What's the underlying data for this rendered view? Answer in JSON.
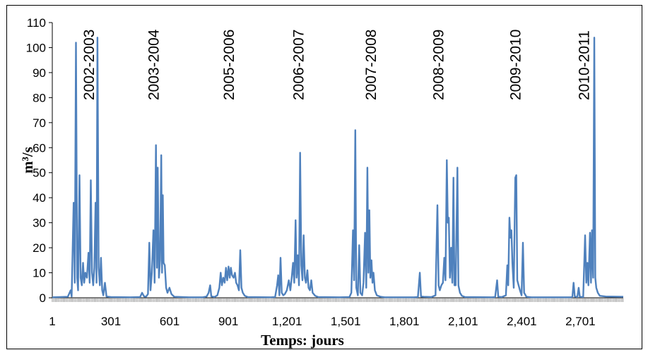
{
  "chart_data": {
    "type": "line",
    "title": "",
    "xlabel": "Temps: jours",
    "ylabel": "m³/s",
    "xlim": [
      1,
      2920
    ],
    "ylim": [
      0,
      110
    ],
    "y_ticks": [
      0,
      10,
      20,
      30,
      40,
      50,
      60,
      70,
      80,
      90,
      100,
      110
    ],
    "x_tick_values": [
      1,
      301,
      601,
      901,
      1201,
      1501,
      1801,
      2101,
      2401,
      2701
    ],
    "x_tick_labels": [
      "1",
      "301",
      "601",
      "901",
      "1,201",
      "1,501",
      "1,801",
      "2,101",
      "2,401",
      "2,701"
    ],
    "grid": false,
    "legend": "none",
    "line_color": "#4f81bd",
    "year_labels": [
      {
        "text": "2002-2003",
        "x": 215
      },
      {
        "text": "2003-2004",
        "x": 545
      },
      {
        "text": "2005-2006",
        "x": 930
      },
      {
        "text": "2006-2007",
        "x": 1285
      },
      {
        "text": "2007-2008",
        "x": 1655
      },
      {
        "text": "2008-2009",
        "x": 2000
      },
      {
        "text": "2009-2010",
        "x": 2395
      },
      {
        "text": "2010-2011",
        "x": 2745
      }
    ],
    "series": [
      {
        "values": [
          [
            1,
            0.2
          ],
          [
            80,
            0.4
          ],
          [
            95,
            3
          ],
          [
            100,
            0.5
          ],
          [
            110,
            38
          ],
          [
            116,
            6
          ],
          [
            122,
            102
          ],
          [
            128,
            8
          ],
          [
            133,
            3
          ],
          [
            140,
            49
          ],
          [
            146,
            8
          ],
          [
            152,
            5
          ],
          [
            158,
            14
          ],
          [
            164,
            6
          ],
          [
            170,
            10
          ],
          [
            178,
            8
          ],
          [
            186,
            18
          ],
          [
            192,
            6
          ],
          [
            198,
            47
          ],
          [
            204,
            10
          ],
          [
            210,
            5
          ],
          [
            216,
            12
          ],
          [
            222,
            38
          ],
          [
            227,
            6
          ],
          [
            232,
            104
          ],
          [
            238,
            12
          ],
          [
            244,
            5
          ],
          [
            250,
            16
          ],
          [
            256,
            3
          ],
          [
            262,
            1
          ],
          [
            270,
            6
          ],
          [
            278,
            0.5
          ],
          [
            300,
            0.3
          ],
          [
            400,
            0.2
          ],
          [
            450,
            0.3
          ],
          [
            460,
            2
          ],
          [
            470,
            0.6
          ],
          [
            480,
            0.4
          ],
          [
            490,
            1.5
          ],
          [
            497,
            22
          ],
          [
            503,
            3
          ],
          [
            510,
            10
          ],
          [
            518,
            27
          ],
          [
            524,
            6
          ],
          [
            531,
            61
          ],
          [
            536,
            12
          ],
          [
            540,
            52
          ],
          [
            546,
            8
          ],
          [
            552,
            15
          ],
          [
            558,
            57
          ],
          [
            562,
            10
          ],
          [
            566,
            41
          ],
          [
            570,
            14
          ],
          [
            576,
            13
          ],
          [
            583,
            4
          ],
          [
            590,
            2
          ],
          [
            600,
            4
          ],
          [
            610,
            1.5
          ],
          [
            625,
            0.4
          ],
          [
            700,
            0.2
          ],
          [
            770,
            0.2
          ],
          [
            790,
            0.5
          ],
          [
            800,
            2
          ],
          [
            808,
            5
          ],
          [
            814,
            0.6
          ],
          [
            830,
            0.3
          ],
          [
            845,
            1
          ],
          [
            855,
            4
          ],
          [
            862,
            10
          ],
          [
            868,
            5
          ],
          [
            875,
            8
          ],
          [
            882,
            6
          ],
          [
            889,
            12
          ],
          [
            895,
            7
          ],
          [
            902,
            12.5
          ],
          [
            908,
            8
          ],
          [
            914,
            12
          ],
          [
            920,
            9
          ],
          [
            928,
            8
          ],
          [
            935,
            10
          ],
          [
            941,
            6
          ],
          [
            948,
            5
          ],
          [
            955,
            3
          ],
          [
            962,
            19
          ],
          [
            968,
            4
          ],
          [
            975,
            2
          ],
          [
            985,
            0.8
          ],
          [
            1000,
            0.3
          ],
          [
            1120,
            0.2
          ],
          [
            1140,
            0.3
          ],
          [
            1150,
            5
          ],
          [
            1156,
            9
          ],
          [
            1162,
            1
          ],
          [
            1168,
            16
          ],
          [
            1174,
            2
          ],
          [
            1182,
            1
          ],
          [
            1190,
            1.5
          ],
          [
            1200,
            3
          ],
          [
            1210,
            7
          ],
          [
            1218,
            3
          ],
          [
            1225,
            8
          ],
          [
            1232,
            14
          ],
          [
            1238,
            6
          ],
          [
            1245,
            31
          ],
          [
            1250,
            8
          ],
          [
            1256,
            17
          ],
          [
            1262,
            5
          ],
          [
            1268,
            58
          ],
          [
            1274,
            13
          ],
          [
            1280,
            7
          ],
          [
            1286,
            25
          ],
          [
            1292,
            8
          ],
          [
            1298,
            6
          ],
          [
            1305,
            11
          ],
          [
            1311,
            4
          ],
          [
            1318,
            3
          ],
          [
            1325,
            7
          ],
          [
            1332,
            2
          ],
          [
            1345,
            0.8
          ],
          [
            1360,
            0.3
          ],
          [
            1470,
            0.2
          ],
          [
            1520,
            0.3
          ],
          [
            1530,
            2
          ],
          [
            1538,
            27
          ],
          [
            1544,
            7
          ],
          [
            1550,
            67
          ],
          [
            1555,
            4
          ],
          [
            1563,
            1
          ],
          [
            1570,
            21
          ],
          [
            1576,
            2
          ],
          [
            1585,
            1
          ],
          [
            1592,
            6
          ],
          [
            1600,
            26
          ],
          [
            1606,
            4
          ],
          [
            1612,
            52
          ],
          [
            1617,
            10
          ],
          [
            1622,
            35
          ],
          [
            1627,
            8
          ],
          [
            1633,
            15
          ],
          [
            1638,
            6
          ],
          [
            1643,
            10
          ],
          [
            1650,
            3
          ],
          [
            1660,
            1
          ],
          [
            1680,
            0.4
          ],
          [
            1700,
            0.2
          ],
          [
            1850,
            0.2
          ],
          [
            1870,
            0.3
          ],
          [
            1880,
            10
          ],
          [
            1886,
            0.5
          ],
          [
            1900,
            0.4
          ],
          [
            1940,
            0.3
          ],
          [
            1960,
            1
          ],
          [
            1970,
            37
          ],
          [
            1976,
            5
          ],
          [
            1982,
            3
          ],
          [
            1990,
            5
          ],
          [
            1998,
            6
          ],
          [
            2005,
            16
          ],
          [
            2011,
            7
          ],
          [
            2018,
            55
          ],
          [
            2023,
            30
          ],
          [
            2028,
            32
          ],
          [
            2034,
            8
          ],
          [
            2040,
            20
          ],
          [
            2046,
            6
          ],
          [
            2052,
            48
          ],
          [
            2057,
            5
          ],
          [
            2063,
            5
          ],
          [
            2072,
            52
          ],
          [
            2077,
            5
          ],
          [
            2085,
            2
          ],
          [
            2095,
            0.8
          ],
          [
            2110,
            0.3
          ],
          [
            2250,
            0.2
          ],
          [
            2265,
            0.3
          ],
          [
            2275,
            7
          ],
          [
            2281,
            0.4
          ],
          [
            2300,
            0.3
          ],
          [
            2320,
            1
          ],
          [
            2327,
            13
          ],
          [
            2332,
            5
          ],
          [
            2338,
            32
          ],
          [
            2343,
            24
          ],
          [
            2348,
            27
          ],
          [
            2353,
            14
          ],
          [
            2360,
            4
          ],
          [
            2368,
            48
          ],
          [
            2373,
            49
          ],
          [
            2378,
            7
          ],
          [
            2385,
            5
          ],
          [
            2392,
            3
          ],
          [
            2400,
            1
          ],
          [
            2407,
            22
          ],
          [
            2413,
            2
          ],
          [
            2425,
            0.4
          ],
          [
            2450,
            0.2
          ],
          [
            2650,
            0.2
          ],
          [
            2660,
            0.3
          ],
          [
            2666,
            6
          ],
          [
            2672,
            0.5
          ],
          [
            2685,
            0.3
          ],
          [
            2692,
            4
          ],
          [
            2698,
            0.4
          ],
          [
            2715,
            0.3
          ],
          [
            2725,
            25
          ],
          [
            2731,
            6
          ],
          [
            2737,
            14
          ],
          [
            2742,
            5
          ],
          [
            2750,
            26
          ],
          [
            2755,
            6
          ],
          [
            2760,
            27
          ],
          [
            2766,
            8
          ],
          [
            2772,
            104
          ],
          [
            2777,
            8
          ],
          [
            2782,
            4
          ],
          [
            2790,
            2
          ],
          [
            2800,
            0.8
          ],
          [
            2830,
            0.5
          ],
          [
            2920,
            0.4
          ]
        ]
      }
    ]
  }
}
